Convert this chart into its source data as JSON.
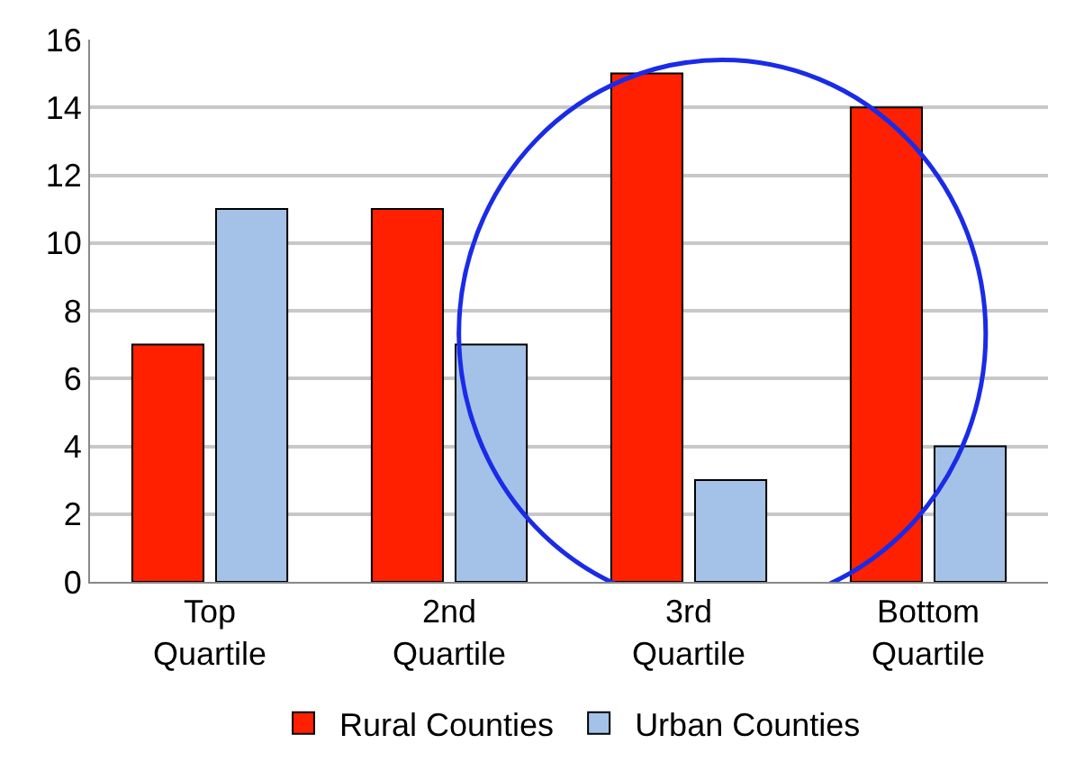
{
  "chart_data": {
    "type": "bar",
    "categories": [
      "Top\nQuartile",
      "2nd\nQuartile",
      "3rd\nQuartile",
      "Bottom\nQuartile"
    ],
    "series": [
      {
        "name": "Rural Counties",
        "color": "#ff2000",
        "values": [
          7,
          11,
          15,
          14
        ]
      },
      {
        "name": "Urban Counties",
        "color": "#a4c2e8",
        "values": [
          11,
          7,
          3,
          4
        ]
      }
    ],
    "ylim": [
      0,
      16
    ],
    "yticks": [
      0,
      2,
      4,
      6,
      8,
      10,
      12,
      14,
      16
    ],
    "grid": "y",
    "legend": "bottom"
  }
}
